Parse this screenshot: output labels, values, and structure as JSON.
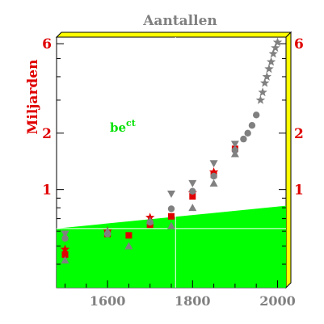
{
  "chart_data": {
    "type": "scatter",
    "title": "Aantallen",
    "ylabel": "Miljarden",
    "xlabel": "",
    "yscale": "log",
    "xlim": [
      1480,
      2020
    ],
    "ylim": [
      0.3,
      6.5
    ],
    "x_ticks": [
      1600,
      1800,
      2000
    ],
    "y_ticks": [
      1,
      2,
      6
    ],
    "annotation": {
      "text": "be",
      "sup": "ct"
    },
    "background_band": {
      "color": "#00ff00",
      "upper_line": [
        [
          1480,
          0.62
        ],
        [
          2020,
          0.82
        ]
      ]
    },
    "reference_lines": {
      "x": 1760,
      "y": 0.62
    },
    "frame_color": "#ffff00",
    "series": [
      {
        "marker": "square",
        "color": "#e00000",
        "points": [
          [
            1500,
            0.45
          ],
          [
            1600,
            0.58
          ],
          [
            1650,
            0.57
          ],
          [
            1700,
            0.65
          ],
          [
            1750,
            0.72
          ],
          [
            1800,
            0.92
          ],
          [
            1850,
            1.2
          ],
          [
            1900,
            1.65
          ]
        ]
      },
      {
        "marker": "star",
        "color": "#e00000",
        "points": [
          [
            1500,
            0.48
          ],
          [
            1600,
            0.6
          ],
          [
            1700,
            0.71
          ],
          [
            1800,
            0.96
          ],
          [
            1850,
            1.24
          ]
        ]
      },
      {
        "marker": "triangle-down",
        "color": "#808080",
        "points": [
          [
            1500,
            0.58
          ],
          [
            1750,
            0.95
          ],
          [
            1800,
            1.08
          ],
          [
            1850,
            1.38
          ],
          [
            1900,
            1.75
          ]
        ]
      },
      {
        "marker": "triangle-up",
        "color": "#808080",
        "points": [
          [
            1500,
            0.42
          ],
          [
            1600,
            0.6
          ],
          [
            1650,
            0.5
          ],
          [
            1700,
            0.68
          ],
          [
            1750,
            0.64
          ],
          [
            1800,
            0.8
          ],
          [
            1850,
            1.08
          ],
          [
            1900,
            1.55
          ]
        ]
      },
      {
        "marker": "circle",
        "color": "#808080",
        "points": [
          [
            1500,
            0.55
          ],
          [
            1600,
            0.58
          ],
          [
            1700,
            0.67
          ],
          [
            1750,
            0.79
          ],
          [
            1800,
            0.98
          ],
          [
            1850,
            1.18
          ],
          [
            1900,
            1.62
          ],
          [
            1920,
            1.86
          ],
          [
            1930,
            2.0
          ],
          [
            1940,
            2.2
          ],
          [
            1950,
            2.5
          ]
        ]
      },
      {
        "marker": "star",
        "color": "#808080",
        "points": [
          [
            1960,
            3.0
          ],
          [
            1965,
            3.3
          ],
          [
            1970,
            3.7
          ],
          [
            1975,
            4.0
          ],
          [
            1980,
            4.4
          ],
          [
            1985,
            4.8
          ],
          [
            1990,
            5.3
          ],
          [
            1995,
            5.7
          ],
          [
            2000,
            6.1
          ]
        ]
      }
    ]
  }
}
